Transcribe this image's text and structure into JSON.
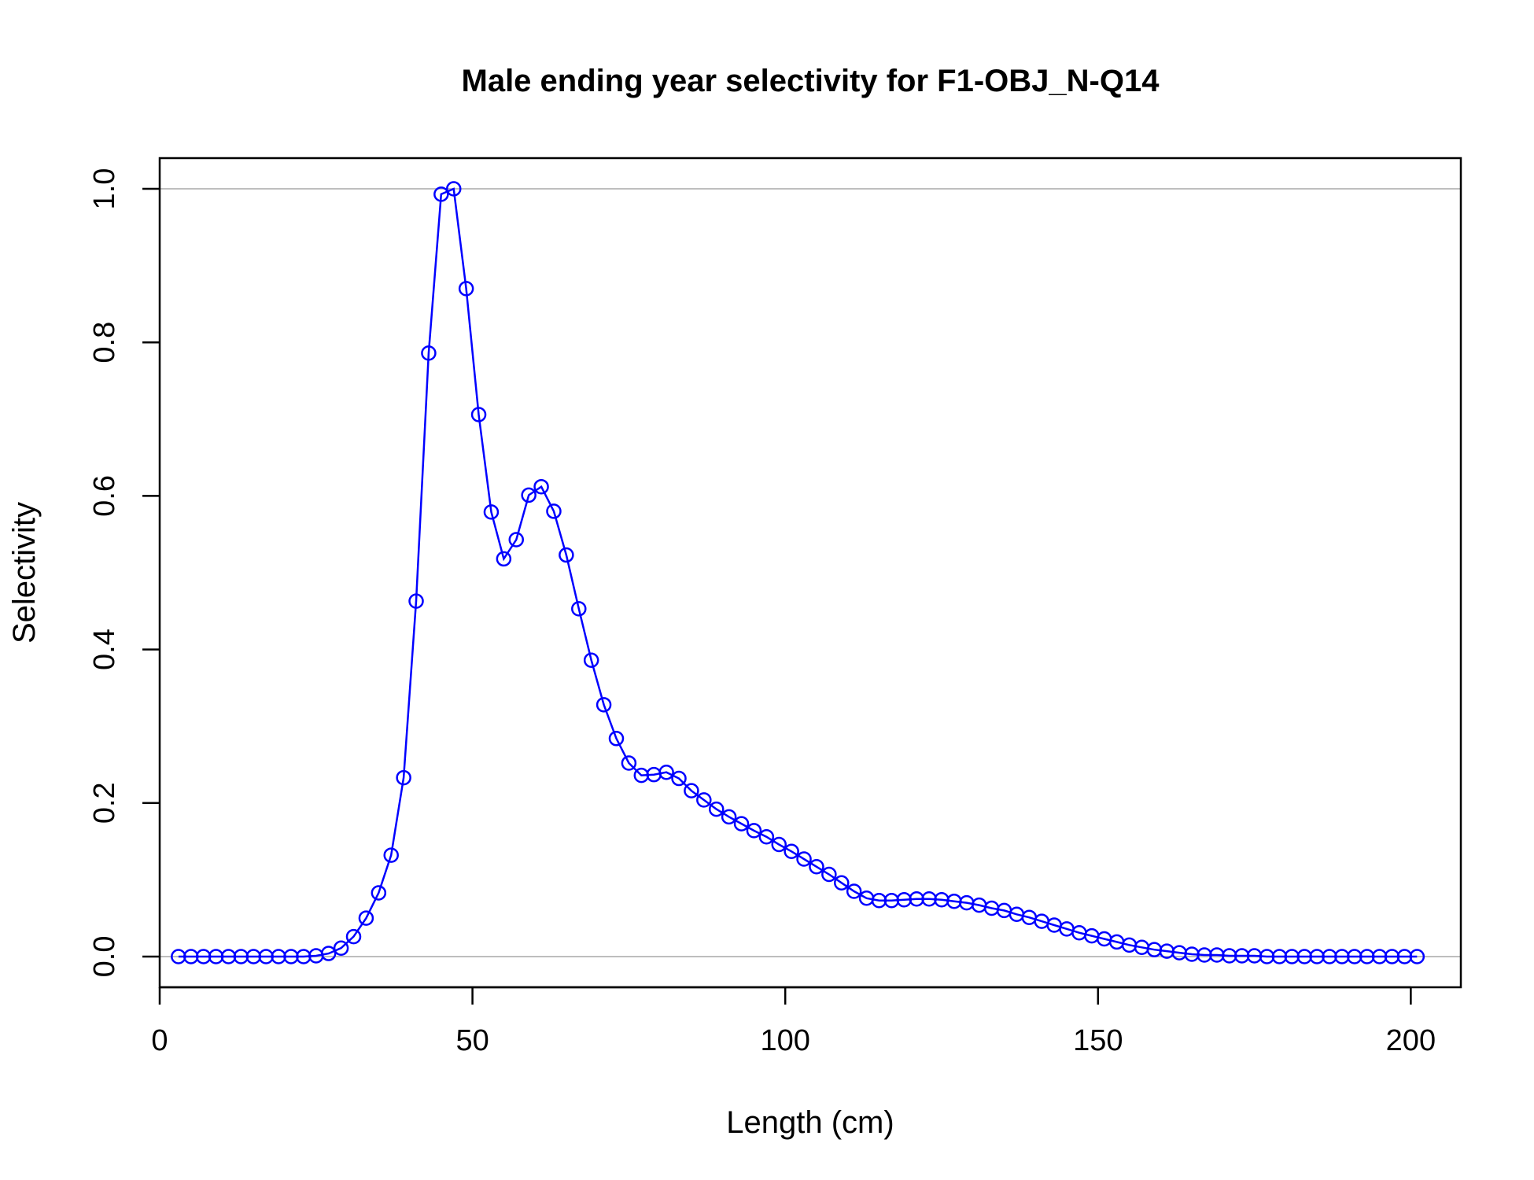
{
  "chart_data": {
    "type": "line",
    "title": "Male ending year selectivity for F1-OBJ_N-Q14",
    "xlabel": "Length (cm)",
    "ylabel": "Selectivity",
    "xlim": [
      0,
      208
    ],
    "ylim": [
      -0.04,
      1.04
    ],
    "xticks": [
      0,
      50,
      100,
      150,
      200
    ],
    "xtick_labels": [
      "0",
      "50",
      "100",
      "150",
      "200"
    ],
    "yticks": [
      0.0,
      0.2,
      0.4,
      0.6,
      0.8,
      1.0
    ],
    "ytick_labels": [
      "0.0",
      "0.2",
      "0.4",
      "0.6",
      "0.8",
      "1.0"
    ],
    "reference_lines_y": [
      0,
      1
    ],
    "reference_line_color": "#bebebe",
    "series_color": "#0000ff",
    "marker": "open-circle",
    "grid": false,
    "series": [
      {
        "x": [
          3,
          5,
          7,
          9,
          11,
          13,
          15,
          17,
          19,
          21,
          23,
          25,
          27,
          29,
          31,
          33,
          35,
          37,
          39,
          41,
          43,
          45,
          47,
          49,
          51,
          53,
          55,
          57,
          59,
          61,
          63,
          65,
          67,
          69,
          71,
          73,
          75,
          77,
          79,
          81,
          83,
          85,
          87,
          89,
          91,
          93,
          95,
          97,
          99,
          101,
          103,
          105,
          107,
          109,
          111,
          113,
          115,
          117,
          119,
          121,
          123,
          125,
          127,
          129,
          131,
          133,
          135,
          137,
          139,
          141,
          143,
          145,
          147,
          149,
          151,
          153,
          155,
          157,
          159,
          161,
          163,
          165,
          167,
          169,
          171,
          173,
          175,
          177,
          179,
          181,
          183,
          185,
          187,
          189,
          191,
          193,
          195,
          197,
          199,
          201
        ],
        "y": [
          0,
          0,
          0,
          0,
          0,
          0,
          0,
          0,
          0,
          0,
          0,
          0.001,
          0.004,
          0.011,
          0.026,
          0.05,
          0.083,
          0.132,
          0.233,
          0.463,
          0.786,
          0.993,
          1.0,
          0.87,
          0.706,
          0.579,
          0.518,
          0.543,
          0.601,
          0.612,
          0.58,
          0.523,
          0.453,
          0.386,
          0.328,
          0.284,
          0.252,
          0.236,
          0.237,
          0.24,
          0.232,
          0.216,
          0.204,
          0.192,
          0.182,
          0.173,
          0.164,
          0.156,
          0.146,
          0.137,
          0.127,
          0.117,
          0.107,
          0.096,
          0.085,
          0.076,
          0.073,
          0.073,
          0.074,
          0.075,
          0.075,
          0.074,
          0.072,
          0.07,
          0.067,
          0.063,
          0.06,
          0.055,
          0.051,
          0.046,
          0.041,
          0.036,
          0.031,
          0.027,
          0.023,
          0.019,
          0.015,
          0.012,
          0.009,
          0.007,
          0.005,
          0.003,
          0.002,
          0.002,
          0.001,
          0.001,
          0.001,
          0,
          0,
          0,
          0,
          0,
          0,
          0,
          0,
          0,
          0,
          0,
          0,
          0
        ]
      }
    ]
  }
}
